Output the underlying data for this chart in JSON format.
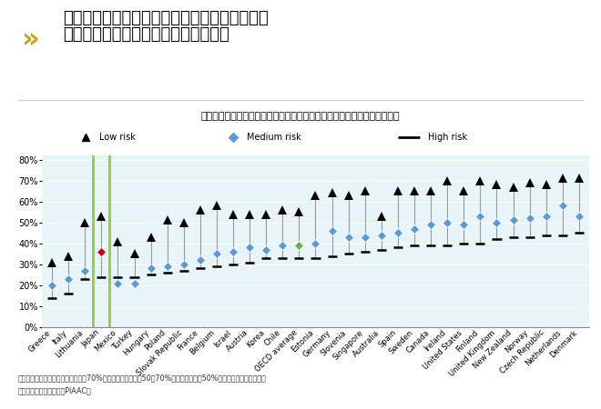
{
  "title_line1": "自動化リスクが高い仕事に就いている労働者の",
  "title_line2": "方が訓練を受ける機会が限られている",
  "subtitle": "仕事関連のフォーマル訓練またはノンフォーマル訓練への労働者の参加率",
  "footnote1": "注：高リスクとは自動化の可能性が70%以上、中リスクとは50～70%、低リスクとは50%未満と定義されている。",
  "footnote2": "出典：国際成人力調査（PIAAC）",
  "countries": [
    "Greece",
    "Italy",
    "Lithuania",
    "Japan",
    "Mexico",
    "Turkey",
    "Hungary",
    "Poland",
    "Slovak Republic",
    "France",
    "Belgium",
    "Israel",
    "Austria",
    "Korea",
    "Chile",
    "OECD average",
    "Estonia",
    "Germany",
    "Slovenia",
    "Singapore",
    "Australia",
    "Spain",
    "Sweden",
    "Canada",
    "Ireland",
    "United States",
    "Finland",
    "United Kingdom",
    "New Zealand",
    "Norway",
    "Czech Republic",
    "Netherlands",
    "Denmark"
  ],
  "low_risk": [
    31,
    34,
    50,
    53,
    41,
    35,
    43,
    51,
    50,
    56,
    58,
    54,
    54,
    54,
    56,
    55,
    63,
    64,
    63,
    65,
    53,
    65,
    65,
    65,
    70,
    65,
    70,
    68,
    67,
    69,
    68,
    71,
    71
  ],
  "medium_risk": [
    20,
    23,
    27,
    36,
    21,
    21,
    28,
    29,
    30,
    32,
    35,
    36,
    38,
    37,
    39,
    39,
    40,
    46,
    43,
    43,
    44,
    45,
    47,
    49,
    50,
    49,
    53,
    50,
    51,
    52,
    53,
    58,
    53
  ],
  "high_risk": [
    14,
    16,
    23,
    24,
    24,
    24,
    25,
    26,
    27,
    28,
    29,
    30,
    31,
    33,
    33,
    33,
    33,
    34,
    35,
    36,
    37,
    38,
    39,
    39,
    39,
    40,
    40,
    42,
    43,
    43,
    44,
    44,
    45
  ],
  "japan_index": 3,
  "oecd_index": 15,
  "bg_color": "#e8f4f8",
  "med_color_default": "#5b9bd5",
  "med_color_japan": "#cc0000",
  "med_color_oecd": "#70ad47",
  "line_color": "#999999",
  "high_color": "#000000",
  "low_color": "#000000",
  "green_line_color": "#92d050",
  "legend_bg": "#d9d9d9",
  "title_color": "#000000",
  "title_fontsize": 13,
  "subtitle_fontsize": 8,
  "axis_fontsize": 7,
  "tick_fontsize": 6
}
